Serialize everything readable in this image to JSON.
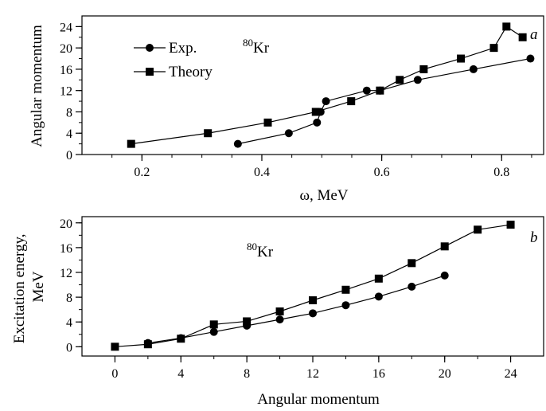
{
  "chart_data": [
    {
      "type": "line",
      "panel_label": "a",
      "annotation": {
        "mass": "80",
        "element": "Kr"
      },
      "xlabel": "ω, MeV",
      "ylabel": "Angular momentum",
      "xlim": [
        0.1,
        0.87
      ],
      "ylim": [
        0,
        26
      ],
      "xticks": [
        "0.2",
        "0.4",
        "0.6",
        "0.8"
      ],
      "xtick_values": [
        0.2,
        0.4,
        0.6,
        0.8
      ],
      "yticks": [
        "0",
        "4",
        "8",
        "12",
        "16",
        "20",
        "24"
      ],
      "ytick_values": [
        0,
        4,
        8,
        12,
        16,
        20,
        24
      ],
      "legend_position": "top-left",
      "series": [
        {
          "name": "Exp.",
          "marker": "circle",
          "x": [
            0.36,
            0.445,
            0.492,
            0.498,
            0.507,
            0.575,
            0.597,
            0.66,
            0.753,
            0.848
          ],
          "y": [
            2,
            4,
            6,
            8,
            10,
            12,
            12,
            14,
            16,
            18
          ]
        },
        {
          "name": "Theory",
          "marker": "square",
          "x": [
            0.182,
            0.31,
            0.41,
            0.49,
            0.549,
            0.597,
            0.63,
            0.67,
            0.732,
            0.787,
            0.808,
            0.835
          ],
          "y": [
            2,
            4,
            6,
            8,
            10,
            12,
            14,
            16,
            18,
            20,
            24,
            22
          ]
        }
      ]
    },
    {
      "type": "line",
      "panel_label": "b",
      "annotation": {
        "mass": "80",
        "element": "Kr"
      },
      "xlabel": "Angular momentum",
      "ylabel_line1": "Excitation energy,",
      "ylabel_line2": "MeV",
      "xlim": [
        -2,
        26
      ],
      "ylim": [
        -1.5,
        21
      ],
      "xticks": [
        "0",
        "4",
        "8",
        "12",
        "16",
        "20",
        "24"
      ],
      "xtick_values": [
        0,
        4,
        8,
        12,
        16,
        20,
        24
      ],
      "yticks": [
        "0",
        "4",
        "8",
        "12",
        "16",
        "20"
      ],
      "ytick_values": [
        0,
        4,
        8,
        12,
        16,
        20
      ],
      "series": [
        {
          "name": "",
          "marker": "circle",
          "x": [
            2,
            4,
            6,
            8,
            10,
            12,
            14,
            16,
            18,
            20
          ],
          "y": [
            0.6,
            1.4,
            2.4,
            3.4,
            4.4,
            5.4,
            6.7,
            8.1,
            9.7,
            11.5
          ]
        },
        {
          "name": "",
          "marker": "square",
          "x": [
            0,
            2,
            4,
            6,
            8,
            10,
            12,
            14,
            16,
            18,
            20,
            22,
            24
          ],
          "y": [
            0,
            0.4,
            1.3,
            3.6,
            4.1,
            5.7,
            7.5,
            9.2,
            11.0,
            13.5,
            16.2,
            18.9,
            19.7
          ]
        }
      ]
    }
  ]
}
